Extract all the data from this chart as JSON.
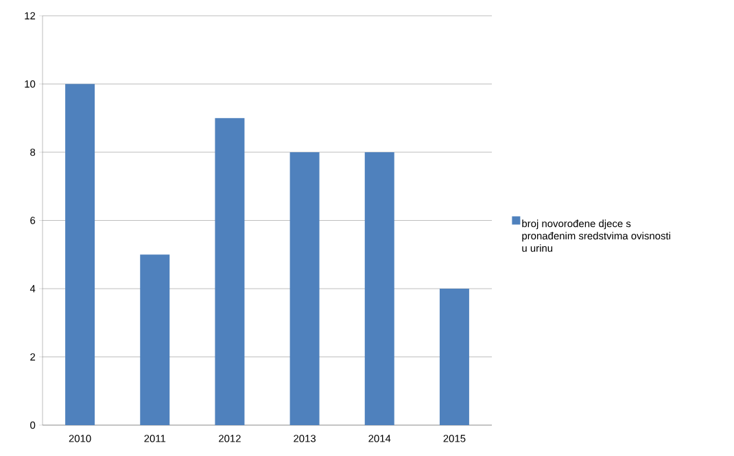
{
  "chart_data": {
    "type": "bar",
    "categories": [
      "2010",
      "2011",
      "2012",
      "2013",
      "2014",
      "2015"
    ],
    "series": [
      {
        "name": "broj novorođene djece s pronađenim sredstvima ovisnosti u urinu",
        "color": "#4f81bd",
        "values": [
          10,
          5,
          9,
          8,
          8,
          4
        ]
      }
    ],
    "ylim": [
      0,
      12
    ],
    "yticks": [
      0,
      2,
      4,
      6,
      8,
      10,
      12
    ],
    "grid": "y",
    "legend": "right"
  }
}
